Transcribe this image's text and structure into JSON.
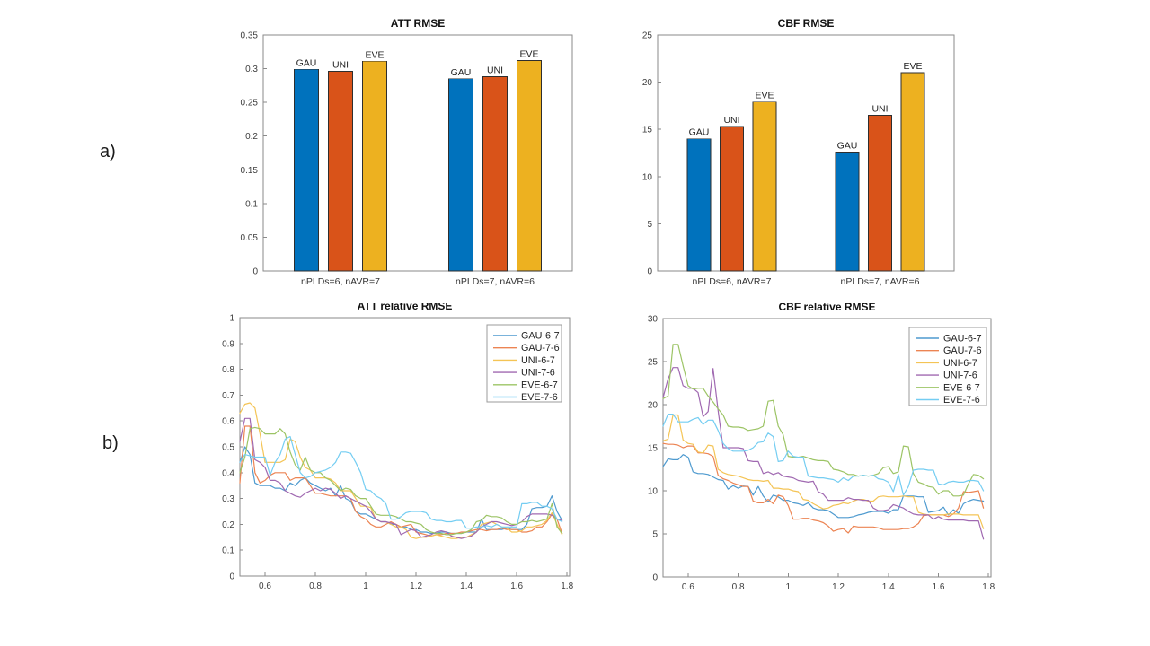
{
  "panel_labels": {
    "a": "a)",
    "b": "b)"
  },
  "palette": {
    "bar_blue": "#0072BD",
    "bar_orange": "#D95319",
    "bar_yellow": "#EDB120",
    "line_blue": "#4E9ACF",
    "line_orange": "#EC8453",
    "line_yellow": "#F4C455",
    "line_purple": "#A069B1",
    "line_green": "#9CC465",
    "line_cyan": "#74CDF2",
    "axis_gray": "#8a8a8a",
    "bar_edge": "#2e2e2e",
    "legend_border": "#9b9b9b"
  },
  "chart_data": [
    {
      "id": "att-rmse",
      "type": "bar",
      "title": "ATT RMSE",
      "categories": [
        "nPLDs=6, nAVR=7",
        "nPLDs=7, nAVR=6"
      ],
      "series": [
        {
          "name": "GAU",
          "color": "#0072BD",
          "values": [
            0.299,
            0.285
          ]
        },
        {
          "name": "UNI",
          "color": "#D95319",
          "values": [
            0.296,
            0.288
          ]
        },
        {
          "name": "EVE",
          "color": "#EDB120",
          "values": [
            0.311,
            0.312
          ]
        }
      ],
      "ylim": [
        0,
        0.35
      ],
      "yticks": [
        0,
        0.05,
        0.1,
        0.15,
        0.2,
        0.25,
        0.3,
        0.35
      ],
      "ytick_labels": [
        "0",
        "0.05",
        "0.1",
        "0.15",
        "0.2",
        "0.25",
        "0.3",
        "0.35"
      ],
      "bar_value_labels": true
    },
    {
      "id": "cbf-rmse",
      "type": "bar",
      "title": "CBF RMSE",
      "categories": [
        "nPLDs=6, nAVR=7",
        "nPLDs=7, nAVR=6"
      ],
      "series": [
        {
          "name": "GAU",
          "color": "#0072BD",
          "values": [
            14.0,
            12.6
          ]
        },
        {
          "name": "UNI",
          "color": "#D95319",
          "values": [
            15.3,
            16.5
          ]
        },
        {
          "name": "EVE",
          "color": "#EDB120",
          "values": [
            17.9,
            21.0
          ]
        }
      ],
      "ylim": [
        0,
        25
      ],
      "yticks": [
        0,
        5,
        10,
        15,
        20,
        25
      ],
      "ytick_labels": [
        "0",
        "5",
        "10",
        "15",
        "20",
        "25"
      ],
      "bar_value_labels": true
    },
    {
      "id": "att-relative-rmse",
      "type": "line",
      "title": "ATT relative RMSE",
      "x_start": 0.5,
      "x_step": 0.02,
      "xlim": [
        0.5,
        1.81
      ],
      "ylim": [
        0,
        1
      ],
      "xticks": [
        0.6,
        0.8,
        1.0,
        1.2,
        1.4,
        1.6,
        1.8
      ],
      "xtick_labels": [
        "0.6",
        "0.8",
        "1",
        "1.2",
        "1.4",
        "1.6",
        "1.8"
      ],
      "yticks": [
        0,
        0.1,
        0.2,
        0.3,
        0.4,
        0.5,
        0.6,
        0.7,
        0.8,
        0.9,
        1
      ],
      "ytick_labels": [
        "0",
        "0.1",
        "0.2",
        "0.3",
        "0.4",
        "0.5",
        "0.6",
        "0.7",
        "0.8",
        "0.9",
        "1"
      ],
      "legend": true,
      "series": [
        {
          "name": "GAU-6-7",
          "color": "#4E9ACF",
          "values": [
            0.44,
            0.5,
            0.47,
            0.36,
            0.35,
            0.35,
            0.35,
            0.34,
            0.34,
            0.33,
            0.36,
            0.35,
            0.37,
            0.38,
            0.36,
            0.35,
            0.34,
            0.33,
            0.34,
            0.31,
            0.35,
            0.3,
            0.29,
            0.25,
            0.24,
            0.24,
            0.23,
            0.22,
            0.21,
            0.21,
            0.2,
            0.2,
            0.19,
            0.19,
            0.18,
            0.18,
            0.17,
            0.17,
            0.165,
            0.165,
            0.17,
            0.17,
            0.165,
            0.165,
            0.165,
            0.17,
            0.17,
            0.17,
            0.22,
            0.18,
            0.18,
            0.18,
            0.18,
            0.185,
            0.18,
            0.18,
            0.18,
            0.2,
            0.26,
            0.265,
            0.265,
            0.27,
            0.31,
            0.25,
            0.215
          ]
        },
        {
          "name": "GAU-7-6",
          "color": "#EC8453",
          "values": [
            0.36,
            0.58,
            0.58,
            0.4,
            0.36,
            0.37,
            0.39,
            0.4,
            0.4,
            0.4,
            0.37,
            0.38,
            0.38,
            0.38,
            0.35,
            0.32,
            0.32,
            0.315,
            0.31,
            0.31,
            0.31,
            0.31,
            0.3,
            0.25,
            0.23,
            0.22,
            0.2,
            0.19,
            0.19,
            0.2,
            0.21,
            0.2,
            0.19,
            0.195,
            0.2,
            0.17,
            0.165,
            0.16,
            0.155,
            0.16,
            0.16,
            0.165,
            0.165,
            0.165,
            0.17,
            0.17,
            0.175,
            0.18,
            0.18,
            0.175,
            0.18,
            0.18,
            0.185,
            0.18,
            0.18,
            0.18,
            0.17,
            0.17,
            0.175,
            0.19,
            0.19,
            0.21,
            0.24,
            0.22,
            0.165
          ]
        },
        {
          "name": "UNI-6-7",
          "color": "#F4C455",
          "values": [
            0.63,
            0.665,
            0.67,
            0.65,
            0.55,
            0.44,
            0.44,
            0.44,
            0.44,
            0.45,
            0.53,
            0.52,
            0.46,
            0.42,
            0.41,
            0.38,
            0.38,
            0.38,
            0.375,
            0.36,
            0.33,
            0.33,
            0.33,
            0.3,
            0.27,
            0.27,
            0.265,
            0.22,
            0.21,
            0.21,
            0.2,
            0.19,
            0.19,
            0.18,
            0.15,
            0.145,
            0.15,
            0.15,
            0.155,
            0.16,
            0.155,
            0.15,
            0.145,
            0.145,
            0.15,
            0.15,
            0.16,
            0.17,
            0.2,
            0.205,
            0.21,
            0.2,
            0.19,
            0.185,
            0.17,
            0.17,
            0.175,
            0.19,
            0.19,
            0.195,
            0.2,
            0.215,
            0.245,
            0.2,
            0.16
          ]
        },
        {
          "name": "UNI-7-6",
          "color": "#A069B1",
          "values": [
            0.52,
            0.61,
            0.61,
            0.45,
            0.44,
            0.42,
            0.37,
            0.37,
            0.36,
            0.33,
            0.32,
            0.31,
            0.305,
            0.32,
            0.33,
            0.34,
            0.33,
            0.34,
            0.335,
            0.32,
            0.3,
            0.31,
            0.3,
            0.29,
            0.28,
            0.27,
            0.25,
            0.22,
            0.21,
            0.21,
            0.205,
            0.2,
            0.16,
            0.17,
            0.18,
            0.175,
            0.15,
            0.155,
            0.16,
            0.17,
            0.175,
            0.17,
            0.155,
            0.15,
            0.145,
            0.15,
            0.155,
            0.17,
            0.19,
            0.2,
            0.21,
            0.21,
            0.205,
            0.2,
            0.195,
            0.2,
            0.21,
            0.23,
            0.24,
            0.24,
            0.24,
            0.24,
            0.235,
            0.22,
            0.215
          ]
        },
        {
          "name": "EVE-6-7",
          "color": "#9CC465",
          "values": [
            0.4,
            0.46,
            0.57,
            0.575,
            0.57,
            0.55,
            0.55,
            0.55,
            0.57,
            0.55,
            0.48,
            0.43,
            0.41,
            0.46,
            0.41,
            0.4,
            0.4,
            0.38,
            0.37,
            0.35,
            0.33,
            0.34,
            0.335,
            0.31,
            0.3,
            0.3,
            0.27,
            0.24,
            0.235,
            0.235,
            0.235,
            0.23,
            0.22,
            0.21,
            0.21,
            0.205,
            0.2,
            0.18,
            0.17,
            0.165,
            0.165,
            0.16,
            0.16,
            0.165,
            0.165,
            0.17,
            0.18,
            0.21,
            0.215,
            0.235,
            0.23,
            0.23,
            0.225,
            0.21,
            0.2,
            0.2,
            0.21,
            0.21,
            0.215,
            0.21,
            0.215,
            0.22,
            0.28,
            0.19,
            0.165
          ]
        },
        {
          "name": "EVE-7-6",
          "color": "#74CDF2",
          "values": [
            0.44,
            0.47,
            0.465,
            0.46,
            0.46,
            0.46,
            0.39,
            0.44,
            0.47,
            0.53,
            0.54,
            0.47,
            0.4,
            0.38,
            0.385,
            0.4,
            0.405,
            0.41,
            0.42,
            0.44,
            0.48,
            0.48,
            0.475,
            0.44,
            0.4,
            0.335,
            0.33,
            0.31,
            0.3,
            0.28,
            0.22,
            0.22,
            0.23,
            0.245,
            0.25,
            0.25,
            0.25,
            0.245,
            0.22,
            0.215,
            0.215,
            0.21,
            0.21,
            0.215,
            0.215,
            0.185,
            0.185,
            0.19,
            0.19,
            0.195,
            0.19,
            0.2,
            0.19,
            0.19,
            0.19,
            0.19,
            0.28,
            0.28,
            0.285,
            0.285,
            0.27,
            0.27,
            0.26,
            0.22,
            0.21
          ]
        }
      ]
    },
    {
      "id": "cbf-relative-rmse",
      "type": "line",
      "title": "CBF relative RMSE",
      "x_start": 0.5,
      "x_step": 0.02,
      "xlim": [
        0.5,
        1.81
      ],
      "ylim": [
        0,
        30
      ],
      "xticks": [
        0.6,
        0.8,
        1.0,
        1.2,
        1.4,
        1.6,
        1.8
      ],
      "xtick_labels": [
        "0.6",
        "0.8",
        "1",
        "1.2",
        "1.4",
        "1.6",
        "1.8"
      ],
      "yticks": [
        0,
        5,
        10,
        15,
        20,
        25,
        30
      ],
      "ytick_labels": [
        "0",
        "5",
        "10",
        "15",
        "20",
        "25",
        "30"
      ],
      "legend": true,
      "series": [
        {
          "name": "GAU-6-7",
          "color": "#4E9ACF",
          "values": [
            12.8,
            13.7,
            13.6,
            13.6,
            14.2,
            13.9,
            12.2,
            12.0,
            12.0,
            11.9,
            11.6,
            11.3,
            11.2,
            10.2,
            10.6,
            10.3,
            10.55,
            10.5,
            9.5,
            10.5,
            9.4,
            8.7,
            9.5,
            9.3,
            8.9,
            8.9,
            8.6,
            8.5,
            8.3,
            8.6,
            8.0,
            7.8,
            7.8,
            7.7,
            7.3,
            6.9,
            6.9,
            6.9,
            7.0,
            7.2,
            7.3,
            7.5,
            7.6,
            7.6,
            7.6,
            7.4,
            7.8,
            7.8,
            9.4,
            9.4,
            9.4,
            9.3,
            9.3,
            7.5,
            7.6,
            7.7,
            8.1,
            7.2,
            7.8,
            7.4,
            8.5,
            8.8,
            9.0,
            8.9,
            8.8
          ]
        },
        {
          "name": "GAU-7-6",
          "color": "#EC8453",
          "values": [
            15.5,
            15.4,
            15.4,
            15.3,
            15.0,
            15.2,
            15.2,
            14.4,
            14.4,
            14.3,
            14.0,
            11.8,
            11.4,
            11.2,
            10.9,
            10.7,
            10.5,
            10.5,
            8.8,
            8.6,
            8.6,
            9.0,
            8.5,
            9.5,
            9.3,
            8.3,
            6.7,
            6.7,
            6.8,
            6.8,
            6.6,
            6.5,
            6.3,
            5.9,
            5.3,
            5.5,
            5.6,
            5.1,
            5.9,
            5.8,
            5.8,
            5.8,
            5.8,
            5.7,
            5.5,
            5.5,
            5.5,
            5.5,
            5.6,
            5.6,
            5.8,
            6.2,
            7.1,
            7.2,
            7.2,
            7.2,
            7.2,
            7.0,
            7.3,
            8.0,
            9.9,
            9.8,
            9.9,
            10.0,
            8.0
          ]
        },
        {
          "name": "UNI-6-7",
          "color": "#F4C455",
          "values": [
            15.8,
            16.0,
            18.8,
            18.8,
            15.9,
            15.5,
            15.4,
            14.5,
            14.4,
            15.3,
            15.2,
            12.5,
            12.1,
            11.9,
            11.8,
            11.7,
            11.5,
            11.3,
            11.2,
            11.2,
            11.1,
            11.2,
            10.3,
            10.3,
            10.2,
            10.2,
            10.0,
            9.9,
            9.0,
            8.9,
            8.5,
            8.2,
            7.9,
            8.0,
            8.3,
            8.4,
            8.6,
            8.5,
            8.8,
            9.0,
            9.0,
            8.8,
            8.8,
            9.3,
            9.4,
            9.3,
            9.3,
            9.3,
            9.4,
            9.3,
            9.3,
            7.5,
            7.3,
            7.2,
            7.2,
            7.2,
            7.2,
            7.3,
            7.3,
            7.3,
            7.2,
            7.2,
            7.2,
            7.2,
            5.6
          ]
        },
        {
          "name": "UNI-7-6",
          "color": "#A069B1",
          "values": [
            20.8,
            23.0,
            24.3,
            24.3,
            22.2,
            21.9,
            21.9,
            21.4,
            18.6,
            19.2,
            24.2,
            19.3,
            15.0,
            15.0,
            15.0,
            15.0,
            14.9,
            13.5,
            13.4,
            13.4,
            12.0,
            12.2,
            11.9,
            12.1,
            11.7,
            11.6,
            11.5,
            11.2,
            11.1,
            11.0,
            11.1,
            9.9,
            9.6,
            8.9,
            8.9,
            8.9,
            8.9,
            9.2,
            9.0,
            9.0,
            8.9,
            8.9,
            8.0,
            7.7,
            7.7,
            7.8,
            8.4,
            8.2,
            8.0,
            7.6,
            7.3,
            7.2,
            7.2,
            7.2,
            6.7,
            7.0,
            6.7,
            6.6,
            6.6,
            6.6,
            6.6,
            6.5,
            6.5,
            6.5,
            4.4
          ]
        },
        {
          "name": "EVE-6-7",
          "color": "#9CC465",
          "values": [
            20.7,
            21.0,
            27.0,
            27.0,
            24.5,
            22.2,
            21.8,
            21.9,
            21.9,
            21.0,
            20.3,
            19.5,
            18.8,
            17.5,
            17.4,
            17.4,
            17.3,
            17.0,
            17.1,
            17.2,
            17.5,
            20.4,
            20.5,
            17.5,
            16.5,
            14.0,
            13.9,
            13.9,
            14.0,
            13.8,
            13.6,
            13.5,
            13.5,
            13.4,
            12.5,
            12.4,
            12.2,
            11.9,
            11.9,
            11.7,
            11.8,
            11.7,
            11.8,
            12.0,
            12.7,
            12.8,
            12.0,
            12.2,
            15.2,
            15.1,
            12.0,
            11.0,
            10.8,
            10.5,
            10.4,
            9.6,
            10.0,
            10.0,
            9.4,
            9.4,
            9.5,
            10.8,
            11.9,
            11.8,
            11.4
          ]
        },
        {
          "name": "EVE-7-6",
          "color": "#74CDF2",
          "values": [
            17.5,
            18.9,
            18.9,
            18.0,
            18.0,
            18.0,
            18.3,
            18.5,
            17.7,
            18.2,
            18.2,
            17.0,
            15.5,
            14.9,
            14.6,
            14.6,
            14.6,
            14.7,
            15.0,
            15.6,
            15.7,
            16.7,
            16.3,
            13.4,
            13.5,
            14.6,
            14.0,
            13.9,
            13.9,
            11.7,
            11.6,
            11.5,
            11.5,
            11.4,
            11.3,
            11.0,
            11.5,
            11.2,
            11.7,
            11.7,
            11.8,
            11.7,
            11.8,
            11.4,
            11.3,
            11.0,
            9.9,
            11.9,
            9.5,
            10.5,
            12.4,
            12.5,
            12.5,
            12.4,
            12.4,
            10.8,
            10.7,
            11.0,
            11.1,
            11.0,
            11.0,
            11.2,
            11.2,
            11.1,
            10.0
          ]
        }
      ]
    }
  ]
}
